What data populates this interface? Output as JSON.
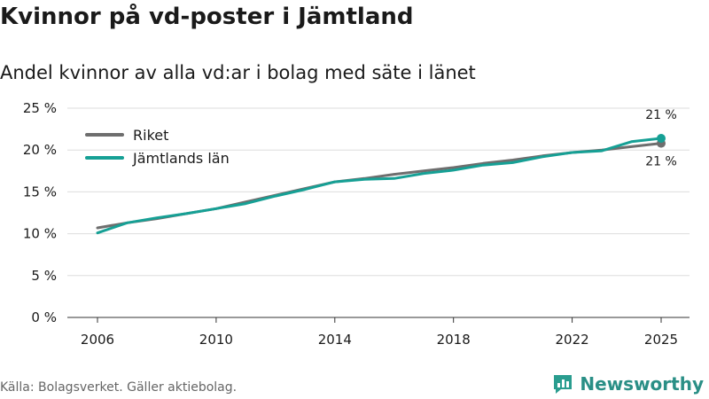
{
  "title": "Kvinnor på vd-poster i Jämtland",
  "subtitle": "Andel kvinnor av alla vd:ar i bolag med säte i länet",
  "source": "Källa: Bolagsverket. Gäller aktiebolag.",
  "brand": {
    "name": "Newsworthy",
    "icon": "newsworthy-logo-icon",
    "color": "#2a9d8f"
  },
  "chart_data": {
    "type": "line",
    "x": [
      2006,
      2007,
      2008,
      2009,
      2010,
      2011,
      2012,
      2013,
      2014,
      2015,
      2016,
      2017,
      2018,
      2019,
      2020,
      2021,
      2022,
      2023,
      2024,
      2025
    ],
    "x_ticks": [
      2006,
      2010,
      2014,
      2018,
      2022,
      2025
    ],
    "xlim": [
      2006,
      2025
    ],
    "ylim": [
      0,
      25
    ],
    "y_ticks": [
      0,
      5,
      10,
      15,
      20,
      25
    ],
    "y_tick_labels": [
      "0 %",
      "5 %",
      "10 %",
      "15 %",
      "20 %",
      "25 %"
    ],
    "series": [
      {
        "name": "Riket",
        "color": "#6e6e6e",
        "values": [
          10.7,
          11.3,
          11.8,
          12.4,
          13.0,
          13.8,
          14.6,
          15.4,
          16.2,
          16.6,
          17.1,
          17.5,
          17.9,
          18.4,
          18.8,
          19.3,
          19.7,
          20.0,
          20.4,
          20.8
        ]
      },
      {
        "name": "Jämtlands län",
        "color": "#16a095",
        "values": [
          10.1,
          11.3,
          11.9,
          12.4,
          13.0,
          13.6,
          14.5,
          15.3,
          16.2,
          16.5,
          16.6,
          17.2,
          17.6,
          18.2,
          18.5,
          19.2,
          19.7,
          19.9,
          21.0,
          21.4
        ]
      }
    ],
    "end_labels": {
      "Jämtlands län": "21 %",
      "Riket": "21 %"
    },
    "legend_position": "top-left"
  }
}
